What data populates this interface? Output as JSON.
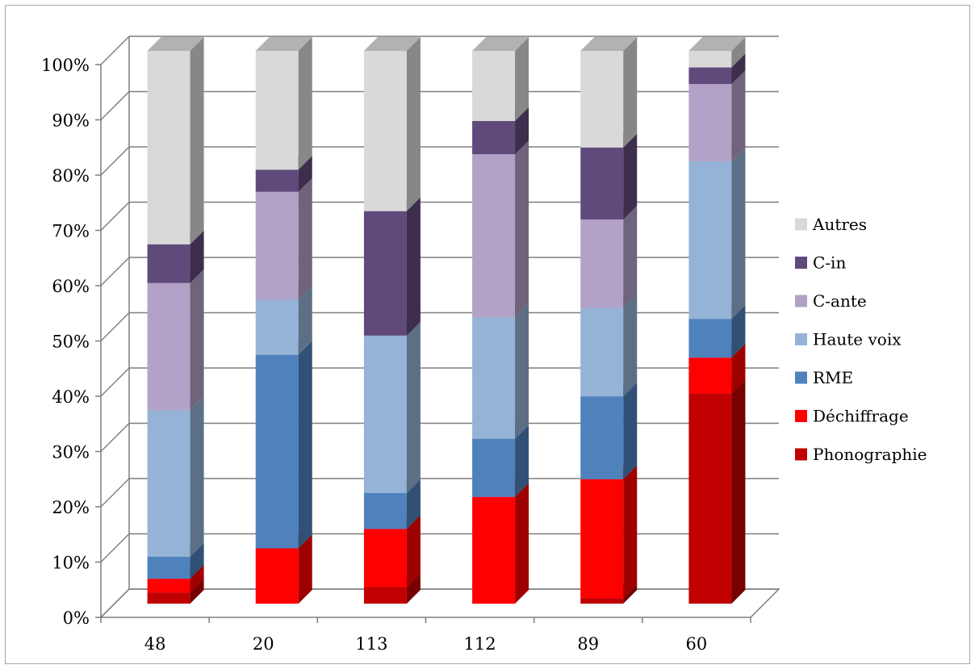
{
  "chart_data": {
    "type": "bar",
    "stacked": true,
    "percent": true,
    "three_d": true,
    "categories": [
      "48",
      "20",
      "113",
      "112",
      "89",
      "60"
    ],
    "y_ticks": [
      "0%",
      "10%",
      "20%",
      "30%",
      "40%",
      "50%",
      "60%",
      "70%",
      "80%",
      "90%",
      "100%"
    ],
    "ylim": [
      0,
      100
    ],
    "grid": true,
    "legend_position": "right",
    "series": [
      {
        "name": "Phonographie",
        "color": "#c00000",
        "values": [
          2,
          0,
          3,
          0,
          1,
          38
        ]
      },
      {
        "name": "Déchiffrage",
        "color": "#ff0000",
        "values": [
          2.5,
          10,
          10.5,
          19.3,
          21.5,
          6.5
        ]
      },
      {
        "name": "RME",
        "color": "#4f81bd",
        "values": [
          4,
          35,
          6.5,
          10.5,
          15,
          7
        ]
      },
      {
        "name": "Haute voix",
        "color": "#95b3d7",
        "values": [
          26.5,
          10,
          28.5,
          22,
          16,
          28.5
        ]
      },
      {
        "name": "C-ante",
        "color": "#b3a2c7",
        "values": [
          23,
          19.5,
          0,
          29.5,
          16,
          14
        ]
      },
      {
        "name": "C-in",
        "color": "#604a7b",
        "values": [
          7,
          4,
          22.5,
          6,
          13,
          3
        ]
      },
      {
        "name": "Autres",
        "color": "#d9d9d9",
        "values": [
          35,
          21.5,
          29,
          12.7,
          17.5,
          3
        ]
      }
    ]
  }
}
